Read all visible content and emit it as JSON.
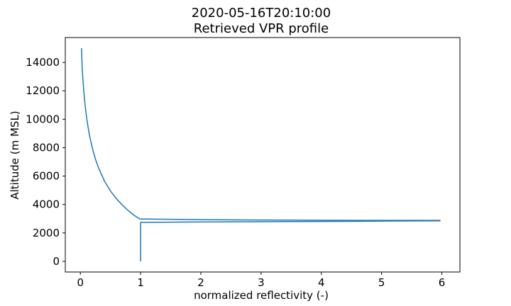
{
  "chart_data": {
    "type": "line",
    "title": "2020-05-16T20:10:00",
    "subtitle": "Retrieved VPR profile",
    "xlabel": "normalized reflectivity (-)",
    "ylabel": "Altitude (m MSL)",
    "xlim": [
      -0.25,
      6.3
    ],
    "ylim": [
      -750,
      15750
    ],
    "xticks": [
      0,
      1,
      2,
      3,
      4,
      5,
      6
    ],
    "yticks": [
      0,
      2000,
      4000,
      6000,
      8000,
      10000,
      12000,
      14000
    ],
    "grid": false,
    "line_color": "#1f77b4",
    "series": [
      {
        "x": [
          1.0,
          1.0,
          1.0,
          1.5,
          2.0,
          3.0,
          4.0,
          5.0,
          5.97,
          5.97,
          5.0,
          4.0,
          3.0,
          2.0,
          1.5,
          1.0,
          0.98,
          0.9,
          0.8,
          0.7,
          0.6,
          0.5,
          0.4,
          0.3,
          0.25,
          0.2,
          0.15,
          0.12,
          0.1,
          0.08,
          0.06,
          0.05,
          0.04,
          0.03,
          0.025,
          0.02
        ],
        "y": [
          0,
          1500,
          2740,
          2760,
          2770,
          2790,
          2810,
          2830,
          2850,
          2880,
          2880,
          2890,
          2910,
          2930,
          2960,
          2980,
          3000,
          3220,
          3550,
          3950,
          4400,
          4950,
          5650,
          6600,
          7200,
          7950,
          8900,
          9650,
          10250,
          10950,
          11850,
          12350,
          12950,
          13650,
          14300,
          15000
        ]
      }
    ]
  }
}
